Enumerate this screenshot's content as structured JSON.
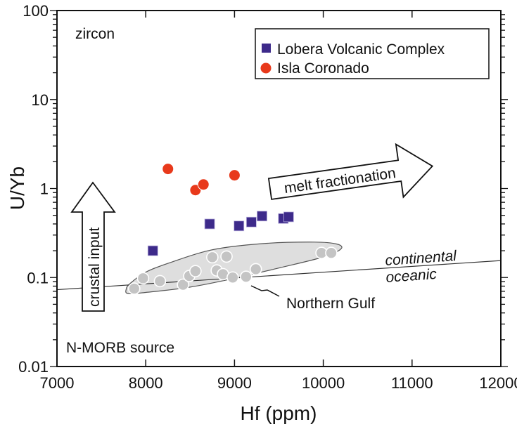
{
  "chart_data": {
    "type": "scatter",
    "title": "",
    "panel_label": "zircon",
    "xlabel": "Hf (ppm)",
    "ylabel": "U/Yb",
    "xlim": [
      7000,
      12000
    ],
    "ylim": [
      0.01,
      100
    ],
    "yscale": "log",
    "x_ticks": [
      7000,
      8000,
      9000,
      10000,
      11000,
      12000
    ],
    "x_tick_labels": [
      "7000",
      "8000",
      "9000",
      "10000",
      "11000",
      "12000"
    ],
    "y_ticks": [
      0.01,
      0.1,
      1,
      10,
      100
    ],
    "y_tick_labels": [
      "0.01",
      "0.1",
      "1",
      "10",
      "100"
    ],
    "grid": false,
    "legend_position": "top-right",
    "series": [
      {
        "name": "Lobera Volcanic Complex",
        "marker": "square",
        "color": "#3d2a8a",
        "points": [
          [
            8080,
            0.2
          ],
          [
            8720,
            0.4
          ],
          [
            9050,
            0.38
          ],
          [
            9190,
            0.42
          ],
          [
            9310,
            0.49
          ],
          [
            9550,
            0.46
          ],
          [
            9610,
            0.48
          ]
        ]
      },
      {
        "name": "Isla Coronado",
        "marker": "circle",
        "color": "#e8391b",
        "points": [
          [
            8250,
            1.66
          ],
          [
            8560,
            0.96
          ],
          [
            8650,
            1.11
          ],
          [
            9000,
            1.41
          ]
        ]
      },
      {
        "name": "Northern Gulf",
        "marker": "circle",
        "color": "#c4c4c4",
        "in_legend": false,
        "points": [
          [
            7870,
            0.075
          ],
          [
            7970,
            0.098
          ],
          [
            8160,
            0.091
          ],
          [
            8420,
            0.083
          ],
          [
            8490,
            0.104
          ],
          [
            8560,
            0.118
          ],
          [
            8750,
            0.169
          ],
          [
            8910,
            0.172
          ],
          [
            8800,
            0.12
          ],
          [
            8870,
            0.109
          ],
          [
            8980,
            0.1
          ],
          [
            9130,
            0.102
          ],
          [
            9240,
            0.124
          ],
          [
            9980,
            0.189
          ],
          [
            10090,
            0.189
          ]
        ]
      }
    ],
    "northern_gulf_field": {
      "label": "Northern Gulf",
      "fill": "#dedede",
      "outline": [
        [
          7780,
          0.074
        ],
        [
          7820,
          0.085
        ],
        [
          8000,
          0.115
        ],
        [
          8300,
          0.15
        ],
        [
          8750,
          0.205
        ],
        [
          9300,
          0.24
        ],
        [
          9900,
          0.25
        ],
        [
          10150,
          0.238
        ],
        [
          10200,
          0.21
        ],
        [
          10000,
          0.17
        ],
        [
          9500,
          0.128
        ],
        [
          9000,
          0.098
        ],
        [
          8500,
          0.078
        ],
        [
          8000,
          0.068
        ],
        [
          7800,
          0.066
        ]
      ]
    },
    "divider_line": {
      "from": [
        7000,
        0.073
      ],
      "to": [
        12000,
        0.155
      ],
      "label_above": "continental",
      "label_below": "oceanic"
    },
    "annotations": {
      "crustal_arrow": "crustal input",
      "melt_arrow": "melt fractionation",
      "source_label": "N-MORB source",
      "field_label": "Northern Gulf"
    }
  }
}
